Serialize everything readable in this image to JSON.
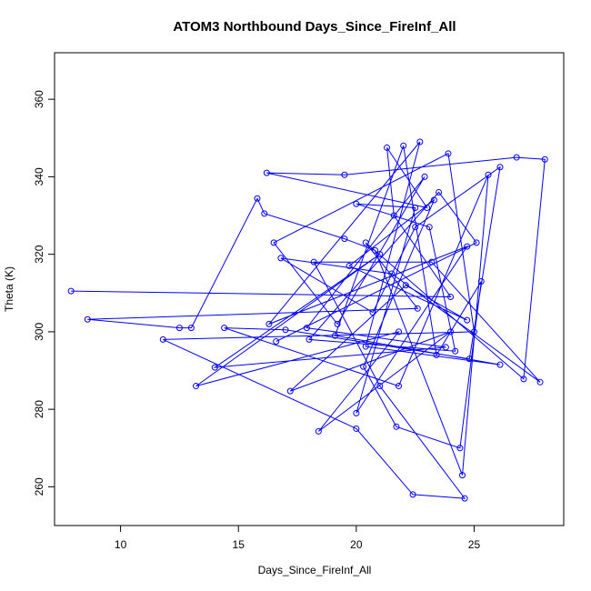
{
  "chart_data": {
    "type": "line",
    "title": "ATOM3 Northbound Days_Since_FireInf_All",
    "xlabel": "Days_Since_FireInf_All",
    "ylabel": "Theta (K)",
    "xlim": [
      7.2,
      28.8
    ],
    "ylim": [
      250,
      372
    ],
    "xticks": [
      "10",
      "15",
      "20",
      "25"
    ],
    "yticks": [
      "260",
      "280",
      "300",
      "320",
      "340",
      "360"
    ],
    "grid": false,
    "series_color": "#0000ff",
    "series": [
      {
        "x": [
          7.9,
          24.0,
          21.6,
          21.3,
          23.0,
          16.2,
          19.5,
          26.8,
          28.0,
          27.1,
          20.4,
          22.6,
          8.6,
          12.5,
          13.0,
          15.8,
          16.1,
          19.5,
          20.8,
          24.5,
          25.6,
          21.8,
          14.4,
          17.0,
          24.8,
          26.1,
          22.5,
          20.7,
          16.8,
          21.5,
          27.8,
          23.2,
          18.2,
          21.0,
          24.6,
          22.4,
          20.0,
          11.8,
          25.0,
          23.9,
          16.5,
          19.2,
          22.9,
          17.9,
          23.8,
          14.0,
          21.0,
          13.2,
          21.8,
          18.4,
          24.0,
          17.2,
          22.1,
          24.7,
          19.7,
          23.3,
          20.3,
          21.7,
          24.4,
          25.3,
          23.4,
          22.0,
          19.1,
          26.1,
          20.4,
          22.7,
          16.3,
          24.7,
          20.0,
          22.5,
          20.0,
          23.1,
          24.2,
          18.0,
          23.5,
          25.1,
          16.6
        ],
        "y": [
          310.5,
          309.0,
          330.0,
          347.5,
          332.0,
          341.0,
          340.5,
          345.0,
          344.5,
          287.8,
          323.0,
          306.0,
          303.2,
          301.0,
          301.0,
          334.4,
          330.5,
          324.0,
          321.0,
          263.0,
          340.5,
          286.0,
          301.0,
          300.5,
          293.0,
          342.5,
          327.0,
          305.0,
          319.0,
          315.0,
          287.0,
          318.0,
          318.0,
          286.0,
          257.0,
          258.0,
          275.0,
          298.0,
          300.0,
          346.0,
          323.0,
          302.0,
          340.0,
          301.0,
          296.0,
          290.8,
          320.0,
          286.0,
          300.0,
          274.3,
          300.0,
          284.7,
          312.0,
          303.0,
          317.0,
          334.0,
          291.0,
          275.5,
          270.0,
          313.0,
          294.0,
          348.0,
          299.0,
          291.5,
          296.2,
          349.0,
          302.0,
          322.0,
          279.0,
          332.0,
          333.0,
          327.0,
          295.0,
          298.0,
          336.0,
          323.0,
          297.5
        ]
      }
    ]
  }
}
